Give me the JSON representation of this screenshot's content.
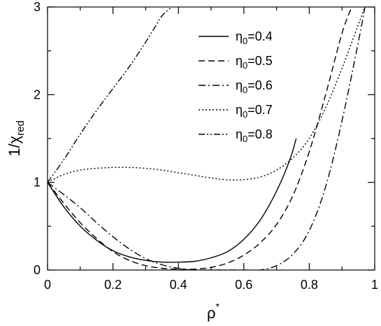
{
  "chart_data": {
    "type": "line",
    "x_label": {
      "base": "ρ",
      "sup": "*"
    },
    "y_label": {
      "prefix": "1/χ",
      "sub": "red"
    },
    "xlim": [
      0,
      1
    ],
    "ylim": [
      0,
      3
    ],
    "x_ticks": [
      0,
      0.2,
      0.4,
      0.6,
      0.8,
      1
    ],
    "x_tick_labels": [
      "0",
      "0.2",
      "0.4",
      "0.6",
      "0.8",
      "1"
    ],
    "y_ticks": [
      0,
      1,
      2,
      3
    ],
    "y_tick_labels": [
      "0",
      "1",
      "2",
      "3"
    ],
    "grid": false,
    "legend_position": "top-right",
    "series": [
      {
        "name": "η0=0.4",
        "legend": {
          "symbol": "η",
          "sub": "0",
          "value": "=0.4"
        },
        "style": "solid",
        "x": [
          0,
          0.05,
          0.1,
          0.15,
          0.2,
          0.25,
          0.3,
          0.35,
          0.4,
          0.45,
          0.5,
          0.55,
          0.6,
          0.65,
          0.7,
          0.74,
          0.76
        ],
        "y": [
          1.0,
          0.72,
          0.5,
          0.34,
          0.22,
          0.15,
          0.11,
          0.09,
          0.09,
          0.1,
          0.14,
          0.21,
          0.35,
          0.57,
          0.9,
          1.25,
          1.5
        ]
      },
      {
        "name": "η0=0.5",
        "legend": {
          "symbol": "η",
          "sub": "0",
          "value": "=0.5"
        },
        "style": "dash",
        "x": [
          0,
          0.05,
          0.1,
          0.15,
          0.2,
          0.25,
          0.3,
          0.35,
          0.4,
          0.45,
          0.5,
          0.55,
          0.6,
          0.65,
          0.7,
          0.75,
          0.8,
          0.85,
          0.9,
          0.93
        ],
        "y": [
          1.0,
          0.76,
          0.54,
          0.36,
          0.21,
          0.11,
          0.05,
          0.02,
          0.01,
          0.01,
          0.03,
          0.08,
          0.17,
          0.31,
          0.52,
          0.85,
          1.35,
          2.0,
          2.7,
          3.0
        ]
      },
      {
        "name": "η0=0.6",
        "legend": {
          "symbol": "η",
          "sub": "0",
          "value": "=0.6"
        },
        "style": "dashdot",
        "x": [
          0,
          0.05,
          0.1,
          0.15,
          0.2,
          0.25,
          0.3,
          0.35,
          0.4,
          0.45,
          0.5,
          0.55,
          0.6,
          0.65,
          0.7,
          0.75,
          0.8,
          0.85,
          0.9,
          0.95,
          0.97
        ],
        "y": [
          1.0,
          0.86,
          0.71,
          0.54,
          0.38,
          0.24,
          0.13,
          0.06,
          0.02,
          0.0,
          0.0,
          0.0,
          0.0,
          0.0,
          0.05,
          0.18,
          0.45,
          0.95,
          1.7,
          2.6,
          3.0
        ]
      },
      {
        "name": "η0=0.7",
        "legend": {
          "symbol": "η",
          "sub": "0",
          "value": "=0.7"
        },
        "style": "dot",
        "x": [
          0,
          0.05,
          0.1,
          0.15,
          0.2,
          0.25,
          0.3,
          0.35,
          0.4,
          0.45,
          0.5,
          0.55,
          0.6,
          0.65,
          0.7,
          0.75,
          0.8,
          0.85,
          0.9,
          0.95,
          0.97
        ],
        "y": [
          1.0,
          1.09,
          1.14,
          1.16,
          1.17,
          1.17,
          1.16,
          1.14,
          1.11,
          1.08,
          1.05,
          1.03,
          1.03,
          1.06,
          1.14,
          1.28,
          1.5,
          1.85,
          2.3,
          2.8,
          3.0
        ]
      },
      {
        "name": "η0=0.8",
        "legend": {
          "symbol": "η",
          "sub": "0",
          "value": "=0.8"
        },
        "style": "dashdotdot",
        "x": [
          0,
          0.05,
          0.1,
          0.15,
          0.2,
          0.25,
          0.3,
          0.33,
          0.35,
          0.38
        ],
        "y": [
          1.0,
          1.26,
          1.55,
          1.82,
          2.07,
          2.32,
          2.6,
          2.78,
          2.9,
          3.0
        ]
      }
    ]
  }
}
